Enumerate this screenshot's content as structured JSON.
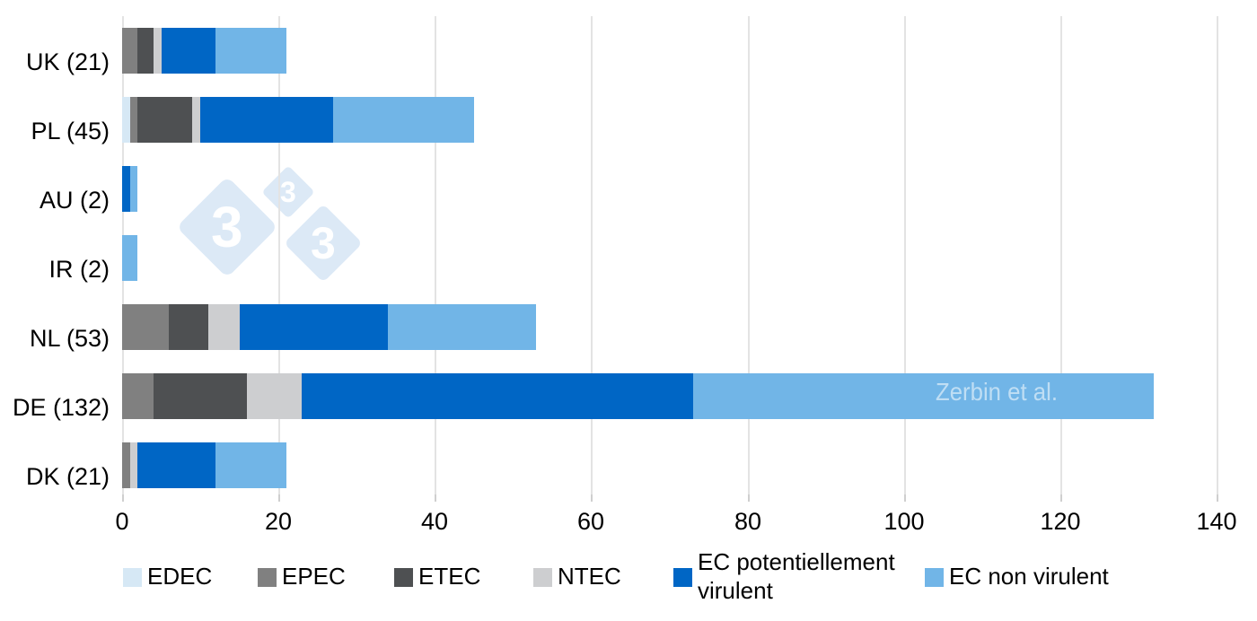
{
  "chart_data": {
    "type": "bar",
    "orientation": "horizontal-stacked",
    "title": "",
    "xlabel": "",
    "ylabel": "",
    "xlim": [
      0,
      140
    ],
    "x_ticks": [
      0,
      20,
      40,
      60,
      80,
      100,
      120,
      140
    ],
    "grid": "vertical",
    "categories": [
      "UK (21)",
      "PL (45)",
      "AU (2)",
      "IR (2)",
      "NL (53)",
      "DE (132)",
      "DK (21)"
    ],
    "category_totals": [
      21,
      45,
      2,
      2,
      53,
      132,
      21
    ],
    "series": [
      {
        "name": "EDEC",
        "color": "#d6e8f5",
        "values": [
          0,
          1,
          0,
          0,
          0,
          0,
          0
        ]
      },
      {
        "name": "EPEC",
        "color": "#808080",
        "values": [
          2,
          1,
          0,
          0,
          6,
          4,
          1
        ]
      },
      {
        "name": "ETEC",
        "color": "#4e5052",
        "values": [
          2,
          7,
          0,
          0,
          5,
          12,
          0
        ]
      },
      {
        "name": "NTEC",
        "color": "#cdced0",
        "values": [
          1,
          1,
          0,
          0,
          4,
          7,
          1
        ]
      },
      {
        "name": "EC potentiellement virulent",
        "color": "#0066c5",
        "values": [
          7,
          17,
          1,
          0,
          19,
          50,
          10
        ]
      },
      {
        "name": "EC non virulent",
        "color": "#71b5e7",
        "values": [
          9,
          18,
          1,
          2,
          19,
          59,
          9
        ]
      }
    ],
    "legend_position": "bottom",
    "annotation": "Zerbin et al."
  },
  "legend": {
    "items": [
      {
        "label": "EDEC",
        "color": "#d6e8f5"
      },
      {
        "label": "EPEC",
        "color": "#808080"
      },
      {
        "label": "ETEC",
        "color": "#4e5052"
      },
      {
        "label": "NTEC",
        "color": "#cdced0"
      },
      {
        "label": "EC potentiellement virulent",
        "color": "#0066c5"
      },
      {
        "label": "EC non virulent",
        "color": "#71b5e7"
      }
    ]
  },
  "watermark": {
    "glyph": "3",
    "diamond_color": "#dce9f6"
  }
}
